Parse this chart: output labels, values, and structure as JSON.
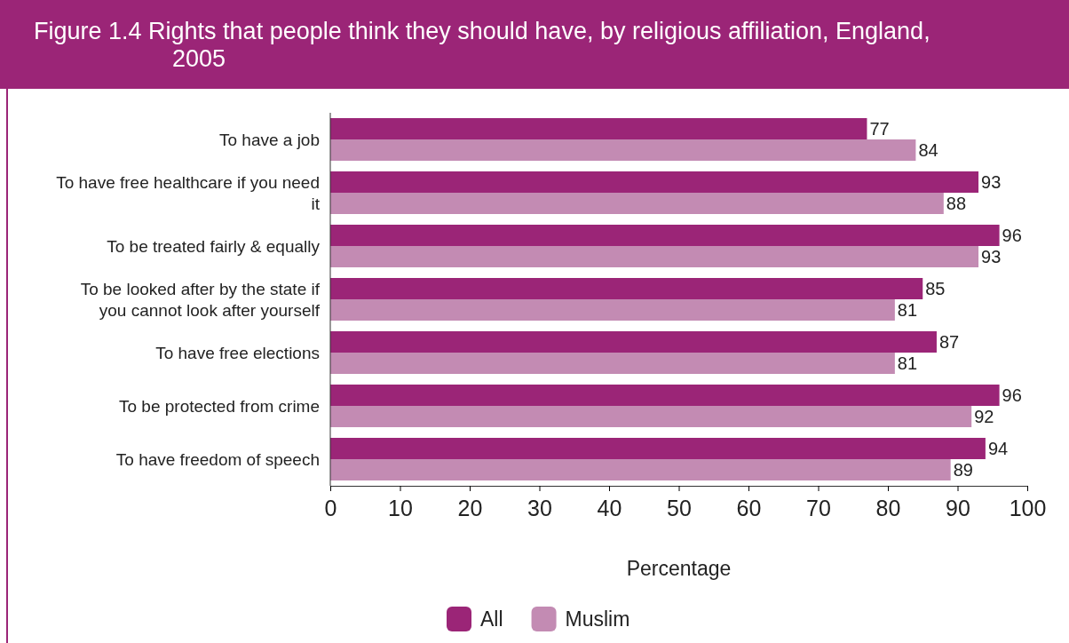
{
  "chart_data": {
    "type": "bar",
    "orientation": "horizontal",
    "title": "Figure 1.4 Rights that people think they should have, by religious affiliation, England, 2005",
    "categories": [
      "To have a job",
      "To have free healthcare if you need it",
      "To be treated fairly & equally",
      "To be looked after by the state if you cannot look after yourself",
      "To have free elections",
      "To be protected from crime",
      "To have freedom of speech"
    ],
    "series": [
      {
        "name": "All",
        "color": "#9b2577",
        "values": [
          77,
          93,
          96,
          85,
          87,
          96,
          94
        ]
      },
      {
        "name": "Muslim",
        "color": "#c38bb3",
        "values": [
          84,
          88,
          93,
          81,
          81,
          92,
          89
        ]
      }
    ],
    "xlabel": "Percentage",
    "xlim": [
      0,
      100
    ],
    "xticks": [
      0,
      10,
      20,
      30,
      40,
      50,
      60,
      70,
      80,
      90,
      100
    ],
    "data_labels": true,
    "legend": "bottom",
    "grid": false
  }
}
